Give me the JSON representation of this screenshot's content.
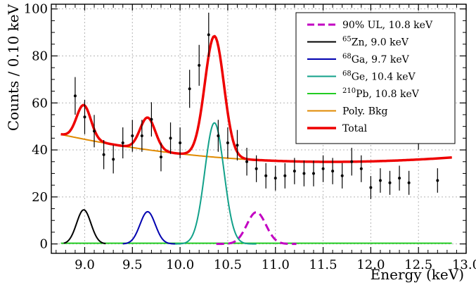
{
  "chart_data": {
    "type": "line",
    "xlabel": "Energy (keV)",
    "ylabel": "Counts / 0.10 keV",
    "xlim": [
      8.65,
      13.0
    ],
    "ylim": [
      -4,
      102
    ],
    "grid": true,
    "legend_position": "top-right",
    "x_ticks": [
      "9.0",
      "9.5",
      "10.0",
      "10.5",
      "11.0",
      "11.5",
      "12.0",
      "12.5",
      "13.0"
    ],
    "y_ticks": [
      "0",
      "20",
      "40",
      "60",
      "80",
      "100"
    ],
    "legend": [
      {
        "sup": "",
        "label": "90% UL, 10.8 keV",
        "color": "#c200c2",
        "dash": true,
        "width": 3
      },
      {
        "sup": "65",
        "label": "Zn, 9.0 keV",
        "color": "#000000",
        "dash": false,
        "width": 2
      },
      {
        "sup": "68",
        "label": "Ga, 9.7 keV",
        "color": "#0000b0",
        "dash": false,
        "width": 2
      },
      {
        "sup": "68",
        "label": "Ge, 10.4 keV",
        "color": "#12a18a",
        "dash": false,
        "width": 2
      },
      {
        "sup": "210",
        "label": "Pb, 10.8 keV",
        "color": "#22cc22",
        "dash": false,
        "width": 2
      },
      {
        "sup": "",
        "label": "Poly. Bkg",
        "color": "#e08a00",
        "dash": false,
        "width": 2
      },
      {
        "sup": "",
        "label": "Total",
        "color": "#ee0000",
        "dash": false,
        "width": 3.5
      }
    ],
    "data_points": {
      "x": [
        8.9,
        9.0,
        9.1,
        9.2,
        9.3,
        9.4,
        9.5,
        9.6,
        9.7,
        9.8,
        9.9,
        10.0,
        10.1,
        10.2,
        10.3,
        10.4,
        10.5,
        10.6,
        10.7,
        10.8,
        10.9,
        11.0,
        11.1,
        11.2,
        11.3,
        11.4,
        11.5,
        11.6,
        11.7,
        11.8,
        11.9,
        12.0,
        12.1,
        12.2,
        12.3,
        12.4,
        12.5,
        12.7
      ],
      "y": [
        63,
        54,
        48,
        38,
        36,
        43,
        46,
        46,
        53,
        37,
        45,
        43,
        66,
        76,
        89,
        46,
        43,
        42,
        35,
        32,
        29,
        28,
        29,
        31,
        30,
        30,
        32,
        31,
        29,
        35,
        32,
        24,
        27,
        26,
        28,
        26,
        47,
        27
      ],
      "yerr": [
        8,
        7.3,
        6.9,
        6.2,
        6,
        6.6,
        6.8,
        6.8,
        7.3,
        6.1,
        6.7,
        6.6,
        8.1,
        8.7,
        9.4,
        6.8,
        6.6,
        6.5,
        5.9,
        5.7,
        5.4,
        5.3,
        5.4,
        5.6,
        5.5,
        5.5,
        5.7,
        5.6,
        5.4,
        5.9,
        5.7,
        4.9,
        5.2,
        5.1,
        5.3,
        5.1,
        6.9,
        5.2
      ]
    },
    "series": [
      {
        "type": "gaussian",
        "mean": 8.99,
        "sigma": 0.075,
        "amplitude": 14.5,
        "color": "#000000",
        "x_range": [
          8.78,
          9.22
        ]
      },
      {
        "type": "gaussian",
        "mean": 9.66,
        "sigma": 0.08,
        "amplitude": 13.7,
        "color": "#0000b0",
        "x_range": [
          9.4,
          9.95
        ]
      },
      {
        "type": "gaussian",
        "mean": 10.36,
        "sigma": 0.1,
        "amplitude": 51.5,
        "color": "#12a18a",
        "x_range": [
          9.95,
          10.8
        ]
      },
      {
        "type": "gaussian",
        "mean": 10.8,
        "sigma": 0.1,
        "amplitude": 13.5,
        "color": "#c200c2",
        "x_range": [
          10.38,
          11.22
        ],
        "dash": true
      },
      {
        "type": "constant",
        "value": 0.3,
        "color": "#22cc22",
        "x_range": [
          8.75,
          12.85
        ]
      },
      {
        "type": "background",
        "color": "#e08a00",
        "x_range": [
          8.75,
          12.85
        ]
      },
      {
        "type": "total",
        "color": "#ee0000",
        "x_range": [
          8.75,
          12.85
        ]
      }
    ]
  }
}
